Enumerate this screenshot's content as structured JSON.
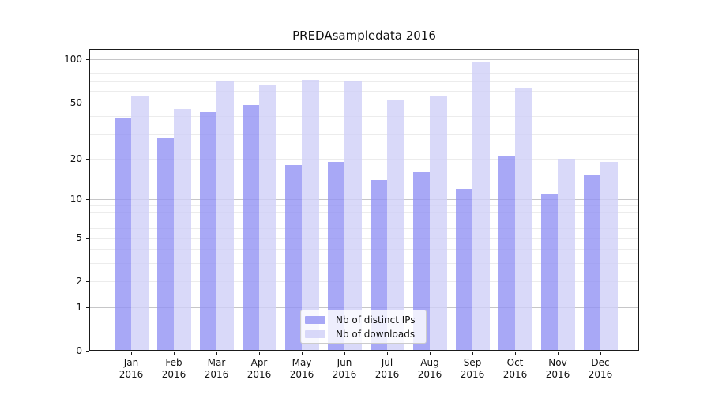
{
  "title": "PREDAsampledata 2016",
  "chart_data": {
    "type": "bar",
    "title": "PREDAsampledata 2016",
    "categories": [
      "Jan 2016",
      "Feb 2016",
      "Mar 2016",
      "Apr 2016",
      "May 2016",
      "Jun 2016",
      "Jul 2016",
      "Aug 2016",
      "Sep 2016",
      "Oct 2016",
      "Nov 2016",
      "Dec 2016"
    ],
    "x_tick_months": [
      "Jan",
      "Feb",
      "Mar",
      "Apr",
      "May",
      "Jun",
      "Jul",
      "Aug",
      "Sep",
      "Oct",
      "Nov",
      "Dec"
    ],
    "x_tick_year": "2016",
    "series": [
      {
        "name": "Nb of distinct IPs",
        "color": "rgba(146,146,244,0.8)",
        "values": [
          39,
          28,
          43,
          48,
          18,
          19,
          14,
          16,
          12,
          21,
          11,
          15
        ]
      },
      {
        "name": "Nb of downloads",
        "color": "rgba(208,208,248,0.8)",
        "values": [
          55,
          45,
          70,
          67,
          72,
          70,
          52,
          55,
          96,
          63,
          20,
          19
        ]
      }
    ],
    "yscale": "log(1+x)",
    "ylim": [
      0,
      118
    ],
    "yticks": [
      0,
      1,
      2,
      5,
      10,
      20,
      50,
      100
    ],
    "grid_major": [
      1,
      10,
      100
    ],
    "grid_minor": [
      2,
      3,
      4,
      5,
      6,
      7,
      8,
      9,
      20,
      30,
      40,
      50,
      60,
      70,
      80,
      90
    ],
    "legend_position": "lower center",
    "xlabel": "",
    "ylabel": ""
  },
  "colors": {
    "background": "#ffffff",
    "frame": "#1a1a1a",
    "text": "#111111",
    "grid_major": "#c6c6c8",
    "grid_minor": "#ececec",
    "bar_distinct_ips": "rgba(146,146,244,0.8)",
    "bar_downloads": "rgba(208,208,248,0.8)",
    "legend_border": "#cccccc",
    "legend_background": "rgba(255,255,255,0.8)"
  }
}
